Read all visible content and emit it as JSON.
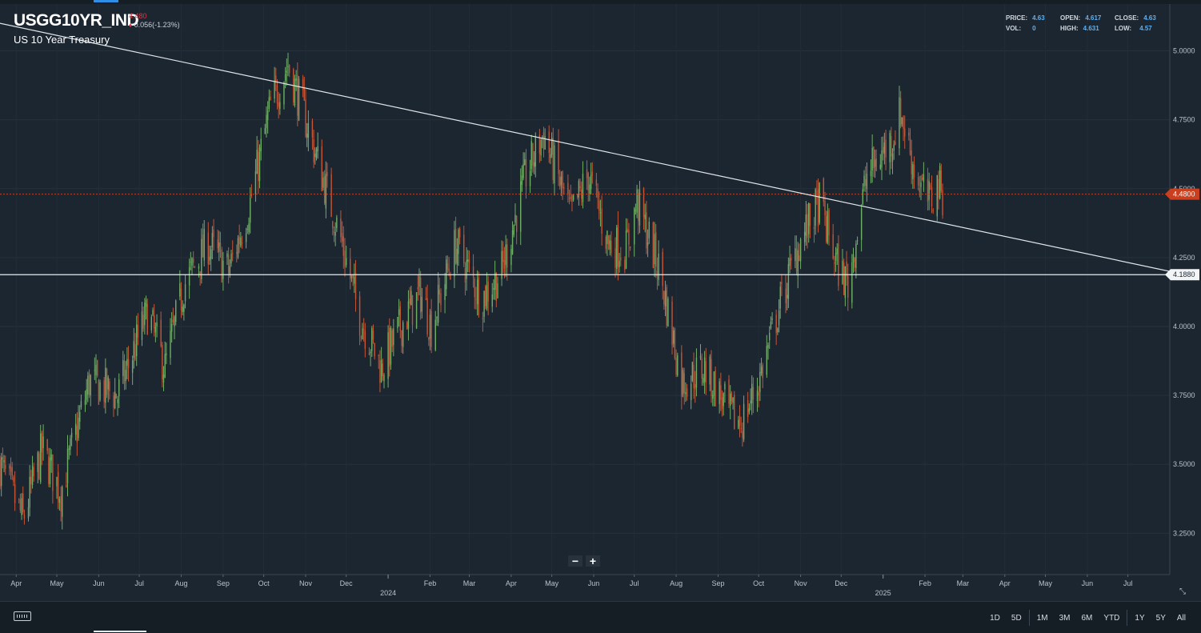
{
  "header": {
    "symbol": "USGG10YR_IND",
    "last_price": "4.480",
    "change": "0.056(-1.23%)",
    "description": "US 10 Year Treasury"
  },
  "ohlc": {
    "price_label": "PRICE:",
    "price_value": "4.63",
    "open_label": "OPEN:",
    "open_value": "4.617",
    "close_label": "CLOSE:",
    "close_value": "4.63",
    "vol_label": "VOL:",
    "vol_value": "0",
    "high_label": "HIGH:",
    "high_value": "4.631",
    "low_label": "LOW:",
    "low_value": "4.57"
  },
  "zoom": {
    "minus": "−",
    "plus": "+"
  },
  "range_buttons": [
    "1D",
    "5D",
    "1M",
    "3M",
    "6M",
    "YTD",
    "1Y",
    "5Y",
    "All"
  ],
  "colors": {
    "background": "#1c2630",
    "up": "#6fae67",
    "down": "#c45536",
    "last_price": "#c8401f",
    "accent": "#2f8fe6"
  },
  "icons": {
    "keyboard": "keyboard-icon",
    "expand": "expand-icon",
    "price_down": "down-arrow-icon"
  },
  "chart_data": {
    "type": "candlestick",
    "y_axis": {
      "ticks": [
        "5.0000",
        "4.7500",
        "4.5000",
        "4.2500",
        "4.0000",
        "3.7500",
        "3.5000",
        "3.2500"
      ],
      "ylim": [
        3.1,
        5.17
      ],
      "side": "right"
    },
    "x_axis": {
      "month_ticks": [
        {
          "label": "Apr",
          "date": "2023-04-01"
        },
        {
          "label": "May",
          "date": "2023-05-01"
        },
        {
          "label": "Jun",
          "date": "2023-06-01"
        },
        {
          "label": "Jul",
          "date": "2023-07-01"
        },
        {
          "label": "Aug",
          "date": "2023-08-01"
        },
        {
          "label": "Sep",
          "date": "2023-09-01"
        },
        {
          "label": "Oct",
          "date": "2023-10-01"
        },
        {
          "label": "Nov",
          "date": "2023-11-01"
        },
        {
          "label": "Dec",
          "date": "2023-12-01"
        },
        {
          "label": "Feb",
          "date": "2024-02-01"
        },
        {
          "label": "Mar",
          "date": "2024-03-01"
        },
        {
          "label": "Apr",
          "date": "2024-04-01"
        },
        {
          "label": "May",
          "date": "2024-05-01"
        },
        {
          "label": "Jun",
          "date": "2024-06-01"
        },
        {
          "label": "Jul",
          "date": "2024-07-01"
        },
        {
          "label": "Aug",
          "date": "2024-08-01"
        },
        {
          "label": "Sep",
          "date": "2024-09-01"
        },
        {
          "label": "Oct",
          "date": "2024-10-01"
        },
        {
          "label": "Nov",
          "date": "2024-11-01"
        },
        {
          "label": "Dec",
          "date": "2024-12-01"
        },
        {
          "label": "Feb",
          "date": "2025-02-01"
        },
        {
          "label": "Mar",
          "date": "2025-03-01"
        },
        {
          "label": "Apr",
          "date": "2025-04-01"
        },
        {
          "label": "May",
          "date": "2025-05-01"
        },
        {
          "label": "Jun",
          "date": "2025-06-01"
        },
        {
          "label": "Jul",
          "date": "2025-07-01"
        }
      ],
      "year_ticks": [
        {
          "label": "2024",
          "date": "2024-01-01"
        },
        {
          "label": "2025",
          "date": "2025-01-01"
        }
      ],
      "range": [
        "2023-03-20",
        "2025-08-01"
      ]
    },
    "price_labels": [
      {
        "value": 4.48,
        "label": "4.4800",
        "style": "last"
      },
      {
        "value": 4.188,
        "label": "4.1880",
        "style": "line"
      }
    ],
    "horizontal_line": 4.188,
    "last_price_line": 4.48,
    "trendline": {
      "from": {
        "date": "2023-03-20",
        "value": 5.1
      },
      "to": {
        "date": "2025-08-01",
        "value": 4.2
      }
    },
    "series": [
      {
        "type": "ohlc",
        "closes": [
          {
            "date": "2023-03-20",
            "close": 3.5
          },
          {
            "date": "2023-04-06",
            "close": 3.3
          },
          {
            "date": "2023-04-20",
            "close": 3.55
          },
          {
            "date": "2023-05-04",
            "close": 3.4
          },
          {
            "date": "2023-05-25",
            "close": 3.8
          },
          {
            "date": "2023-06-15",
            "close": 3.75
          },
          {
            "date": "2023-07-07",
            "close": 4.05
          },
          {
            "date": "2023-07-20",
            "close": 3.85
          },
          {
            "date": "2023-08-03",
            "close": 4.15
          },
          {
            "date": "2023-08-21",
            "close": 4.3
          },
          {
            "date": "2023-09-05",
            "close": 4.2
          },
          {
            "date": "2023-09-21",
            "close": 4.45
          },
          {
            "date": "2023-10-06",
            "close": 4.8
          },
          {
            "date": "2023-10-19",
            "close": 4.95
          },
          {
            "date": "2023-11-01",
            "close": 4.75
          },
          {
            "date": "2023-11-10",
            "close": 4.6
          },
          {
            "date": "2023-11-28",
            "close": 4.3
          },
          {
            "date": "2023-12-10",
            "close": 4.05
          },
          {
            "date": "2023-12-27",
            "close": 3.85
          },
          {
            "date": "2024-01-10",
            "close": 4.0
          },
          {
            "date": "2024-01-25",
            "close": 4.12
          },
          {
            "date": "2024-02-02",
            "close": 4.0
          },
          {
            "date": "2024-02-20",
            "close": 4.3
          },
          {
            "date": "2024-03-10",
            "close": 4.1
          },
          {
            "date": "2024-03-25",
            "close": 4.2
          },
          {
            "date": "2024-04-12",
            "close": 4.55
          },
          {
            "date": "2024-04-25",
            "close": 4.7
          },
          {
            "date": "2024-05-15",
            "close": 4.4
          },
          {
            "date": "2024-05-28",
            "close": 4.55
          },
          {
            "date": "2024-06-12",
            "close": 4.3
          },
          {
            "date": "2024-06-25",
            "close": 4.28
          },
          {
            "date": "2024-07-03",
            "close": 4.45
          },
          {
            "date": "2024-07-20",
            "close": 4.2
          },
          {
            "date": "2024-08-05",
            "close": 3.8
          },
          {
            "date": "2024-08-22",
            "close": 3.85
          },
          {
            "date": "2024-09-10",
            "close": 3.68
          },
          {
            "date": "2024-09-18",
            "close": 3.65
          },
          {
            "date": "2024-10-01",
            "close": 3.8
          },
          {
            "date": "2024-10-15",
            "close": 4.05
          },
          {
            "date": "2024-10-31",
            "close": 4.3
          },
          {
            "date": "2024-11-15",
            "close": 4.45
          },
          {
            "date": "2024-11-28",
            "close": 4.22
          },
          {
            "date": "2024-12-06",
            "close": 4.15
          },
          {
            "date": "2024-12-20",
            "close": 4.55
          },
          {
            "date": "2025-01-08",
            "close": 4.68
          },
          {
            "date": "2025-01-14",
            "close": 4.78
          },
          {
            "date": "2025-01-25",
            "close": 4.55
          },
          {
            "date": "2025-02-04",
            "close": 4.45
          },
          {
            "date": "2025-02-11",
            "close": 4.52
          },
          {
            "date": "2025-02-14",
            "close": 4.48
          }
        ]
      }
    ]
  }
}
